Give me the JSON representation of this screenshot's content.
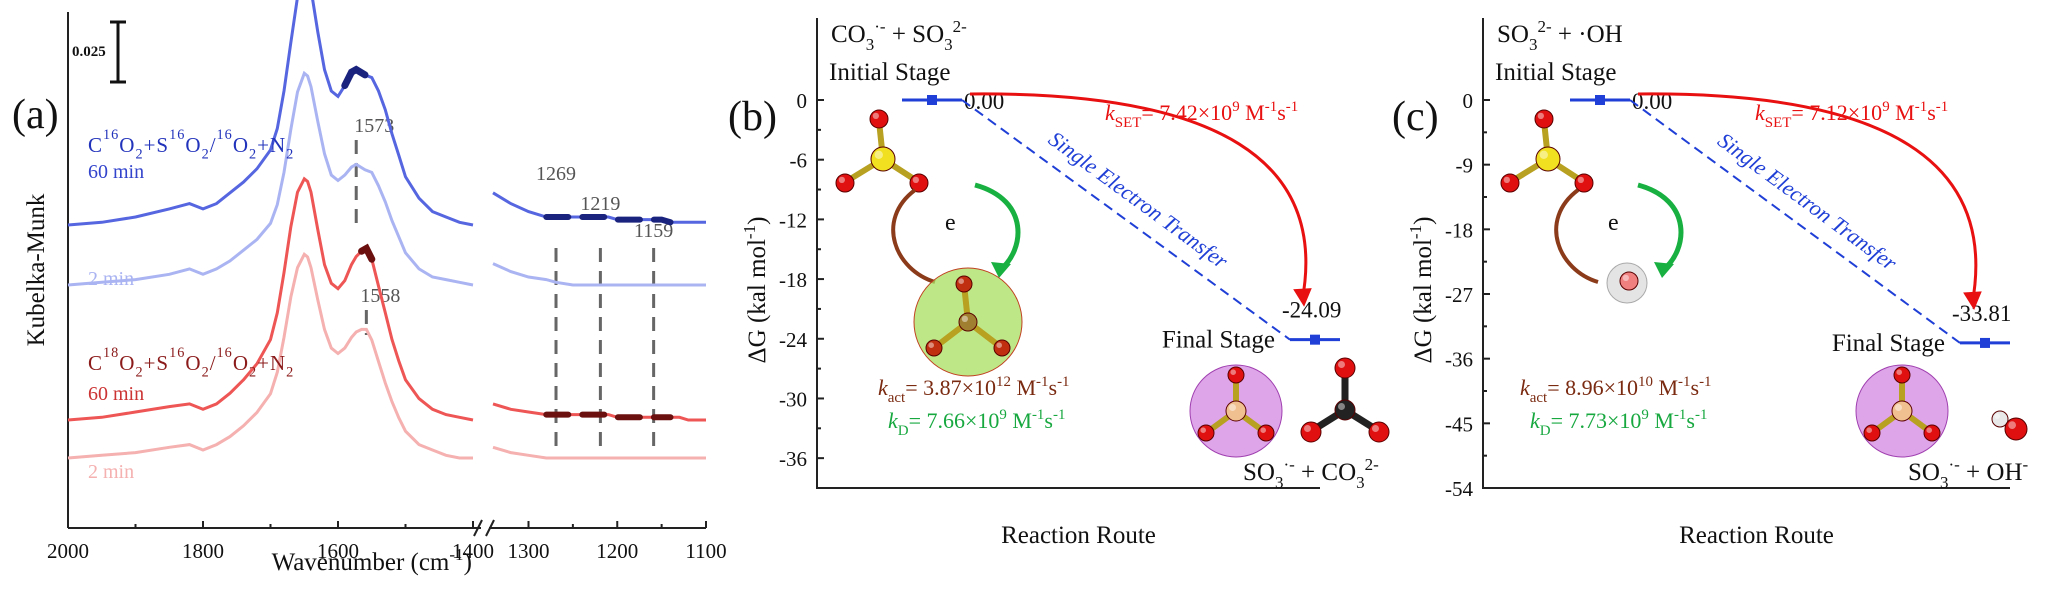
{
  "chart_data": [
    {
      "panel": "(a)",
      "type": "line",
      "xlabel": "Wavenumber (cm⁻¹)",
      "ylabel": "Kubelka-Munk",
      "scale_bar_label": "0.025",
      "xlim": [
        2000,
        1100
      ],
      "axis_break": [
        1400,
        1340
      ],
      "x_ticks": [
        2000,
        1800,
        1600,
        1400,
        1300,
        1200,
        1100
      ],
      "groups": [
        {
          "label_parts": [
            "C",
            "16",
            "O",
            "2",
            "+S",
            "16",
            "O",
            "2",
            "/",
            "16",
            "O",
            "2",
            "+N",
            "2"
          ],
          "color": "#2233bb",
          "peak_label": "1573",
          "peak_x": 1573
        },
        {
          "label_parts": [
            "C",
            "18",
            "O",
            "2",
            "+S",
            "16",
            "O",
            "2",
            "/",
            "16",
            "O",
            "2",
            "+N",
            "2"
          ],
          "color": "#8b1a1a",
          "peak_label": "1558",
          "peak_x": 1558
        }
      ],
      "reference_lines": [
        {
          "x": 1269,
          "label": "1269"
        },
        {
          "x": 1219,
          "label": "1219"
        },
        {
          "x": 1159,
          "label": "1159"
        }
      ],
      "series": [
        {
          "name": "60 min",
          "group": 0,
          "color": "#5566e0",
          "label_color": "#3344cc",
          "x": [
            2000,
            1950,
            1900,
            1850,
            1820,
            1800,
            1780,
            1760,
            1740,
            1720,
            1700,
            1690,
            1680,
            1670,
            1660,
            1650,
            1645,
            1640,
            1630,
            1620,
            1610,
            1600,
            1590,
            1580,
            1573,
            1560,
            1550,
            1540,
            1530,
            1520,
            1510,
            1500,
            1480,
            1460,
            1440,
            1420,
            1400
          ],
          "y": [
            0.0,
            0.001,
            0.003,
            0.006,
            0.008,
            0.006,
            0.008,
            0.012,
            0.016,
            0.021,
            0.028,
            0.036,
            0.05,
            0.068,
            0.085,
            0.094,
            0.093,
            0.088,
            0.072,
            0.058,
            0.05,
            0.048,
            0.052,
            0.057,
            0.058,
            0.056,
            0.055,
            0.05,
            0.043,
            0.034,
            0.026,
            0.018,
            0.01,
            0.005,
            0.003,
            0.001,
            0.0
          ],
          "x2": [
            1340,
            1320,
            1300,
            1280,
            1269,
            1250,
            1240,
            1230,
            1219,
            1210,
            1200,
            1180,
            1170,
            1159,
            1150,
            1140,
            1130,
            1120,
            1110,
            1100
          ],
          "y2": [
            0.012,
            0.008,
            0.005,
            0.003,
            0.003,
            0.003,
            0.003,
            0.003,
            0.003,
            0.003,
            0.002,
            0.002,
            0.002,
            0.002,
            0.002,
            0.001,
            0.001,
            0.001,
            0.001,
            0.001
          ]
        },
        {
          "name": "2 min",
          "group": 0,
          "color": "#aab4f2",
          "label_color": "#aab4f2",
          "x": [
            2000,
            1950,
            1900,
            1850,
            1820,
            1800,
            1780,
            1760,
            1740,
            1720,
            1700,
            1690,
            1680,
            1670,
            1660,
            1650,
            1645,
            1640,
            1630,
            1620,
            1610,
            1600,
            1590,
            1580,
            1573,
            1560,
            1550,
            1540,
            1530,
            1520,
            1510,
            1500,
            1480,
            1460,
            1440,
            1420,
            1400
          ],
          "y": [
            0.0,
            0.001,
            0.002,
            0.004,
            0.006,
            0.004,
            0.006,
            0.009,
            0.013,
            0.017,
            0.023,
            0.03,
            0.042,
            0.058,
            0.072,
            0.079,
            0.078,
            0.074,
            0.061,
            0.049,
            0.041,
            0.039,
            0.041,
            0.044,
            0.045,
            0.043,
            0.042,
            0.037,
            0.031,
            0.024,
            0.018,
            0.012,
            0.006,
            0.003,
            0.002,
            0.001,
            0.0
          ],
          "x2": [
            1340,
            1320,
            1300,
            1280,
            1269,
            1250,
            1240,
            1230,
            1219,
            1210,
            1200,
            1180,
            1170,
            1159,
            1150,
            1140,
            1130,
            1120,
            1110,
            1100
          ],
          "y2": [
            0.008,
            0.005,
            0.003,
            0.002,
            0.001,
            0.0,
            0.0,
            0.0,
            0.0,
            0.0,
            0.0,
            0.0,
            0.0,
            0.0,
            0.0,
            0.0,
            0.0,
            0.0,
            0.0,
            0.0
          ]
        },
        {
          "name": "60 min",
          "group": 1,
          "color": "#ee5555",
          "label_color": "#cc3333",
          "x": [
            2000,
            1950,
            1900,
            1850,
            1820,
            1800,
            1780,
            1760,
            1740,
            1720,
            1700,
            1690,
            1680,
            1670,
            1660,
            1650,
            1645,
            1640,
            1630,
            1620,
            1610,
            1600,
            1590,
            1580,
            1573,
            1565,
            1558,
            1550,
            1540,
            1530,
            1520,
            1510,
            1500,
            1480,
            1460,
            1440,
            1420,
            1400
          ],
          "y": [
            0.0,
            0.001,
            0.003,
            0.005,
            0.006,
            0.004,
            0.006,
            0.01,
            0.015,
            0.021,
            0.03,
            0.04,
            0.055,
            0.072,
            0.085,
            0.09,
            0.089,
            0.085,
            0.071,
            0.058,
            0.051,
            0.049,
            0.052,
            0.058,
            0.061,
            0.063,
            0.064,
            0.06,
            0.05,
            0.04,
            0.03,
            0.022,
            0.015,
            0.008,
            0.004,
            0.002,
            0.001,
            0.0
          ],
          "x2": [
            1340,
            1320,
            1300,
            1280,
            1269,
            1250,
            1240,
            1230,
            1219,
            1210,
            1200,
            1180,
            1170,
            1159,
            1150,
            1140,
            1130,
            1120,
            1110,
            1100
          ],
          "y2": [
            0.006,
            0.004,
            0.003,
            0.002,
            0.002,
            0.002,
            0.002,
            0.002,
            0.002,
            0.002,
            0.001,
            0.001,
            0.001,
            0.001,
            0.001,
            0.001,
            0.001,
            0.0,
            0.0,
            0.0
          ]
        },
        {
          "name": "2 min",
          "group": 1,
          "color": "#f5b0b0",
          "label_color": "#f5b0b0",
          "x": [
            2000,
            1950,
            1900,
            1850,
            1820,
            1800,
            1780,
            1760,
            1740,
            1720,
            1700,
            1690,
            1680,
            1670,
            1660,
            1650,
            1645,
            1640,
            1630,
            1620,
            1610,
            1600,
            1590,
            1580,
            1573,
            1565,
            1558,
            1550,
            1540,
            1530,
            1520,
            1510,
            1500,
            1480,
            1460,
            1440,
            1420,
            1400
          ],
          "y": [
            0.0,
            0.001,
            0.002,
            0.004,
            0.005,
            0.003,
            0.005,
            0.008,
            0.012,
            0.017,
            0.024,
            0.032,
            0.045,
            0.06,
            0.071,
            0.076,
            0.075,
            0.071,
            0.059,
            0.048,
            0.041,
            0.039,
            0.041,
            0.045,
            0.047,
            0.048,
            0.048,
            0.044,
            0.036,
            0.028,
            0.021,
            0.015,
            0.01,
            0.005,
            0.003,
            0.001,
            0.0,
            0.0
          ],
          "x2": [
            1340,
            1320,
            1300,
            1280,
            1269,
            1250,
            1240,
            1230,
            1219,
            1210,
            1200,
            1180,
            1170,
            1159,
            1150,
            1140,
            1130,
            1120,
            1110,
            1100
          ],
          "y2": [
            0.004,
            0.002,
            0.001,
            0.0,
            0.0,
            0.0,
            0.0,
            0.0,
            0.0,
            0.0,
            0.0,
            0.0,
            0.0,
            0.0,
            0.0,
            0.0,
            0.0,
            0.0,
            0.0,
            0.0
          ]
        }
      ]
    },
    {
      "panel": "(b)",
      "type": "line",
      "ylabel": "ΔG (kal mol⁻¹)",
      "xlabel": "Reaction Route",
      "ylim": [
        -39,
        0
      ],
      "y_ticks": [
        0,
        -6,
        -12,
        -18,
        -24,
        -30,
        -36
      ],
      "y_tick_labels": [
        "0",
        "-6",
        "-12",
        "-18",
        "-24",
        "-30",
        "-36"
      ],
      "reactants_parts": [
        "CO",
        "3",
        "·-",
        " + SO",
        "3",
        "2-"
      ],
      "initial_label": "Initial Stage",
      "final_label": "Final Stage",
      "products_parts": [
        "SO",
        "3",
        "·-",
        " + CO",
        "3",
        "2-"
      ],
      "energies": [
        0.0,
        -24.09
      ],
      "energy_labels": [
        "0.00",
        "-24.09"
      ],
      "transfer_label": "Single Electron Transfer",
      "electron_label": "e",
      "rate_set": {
        "k": "k",
        "sub": "SET",
        "value": "= 7.42×10",
        "exp": "9",
        "unit": " M",
        "u1": "-1",
        "unit2": "s",
        "u2": "-1"
      },
      "rate_act": {
        "k": "k",
        "sub": "act",
        "value": "= 3.87×10",
        "exp": "12",
        "unit": " M",
        "u1": "-1",
        "unit2": "s",
        "u2": "-1"
      },
      "rate_d": {
        "k": "k",
        "sub": "D",
        "value": "= 7.66×10",
        "exp": "9",
        "unit": " M",
        "u1": "-1",
        "unit2": "s",
        "u2": "-1"
      },
      "colors": {
        "level": "#1f3fd6",
        "set": "#e81010",
        "act": "#7a2a10",
        "diff": "#18a840",
        "transfer": "#1f3fd6"
      }
    },
    {
      "panel": "(c)",
      "type": "line",
      "ylabel": "ΔG (kal mol⁻¹)",
      "xlabel": "Reaction Route",
      "ylim": [
        -54,
        0
      ],
      "y_ticks": [
        0,
        -9,
        -18,
        -27,
        -36,
        -45,
        -54
      ],
      "y_tick_labels": [
        "0",
        "-9",
        "-18",
        "-27",
        "-36",
        "-45",
        "-54"
      ],
      "reactants_parts": [
        "SO",
        "3",
        "2-",
        " + ·OH",
        "",
        ""
      ],
      "initial_label": "Initial Stage",
      "final_label": "Final Stage",
      "products_parts": [
        "SO",
        "3",
        "·-",
        " + OH",
        "",
        "-"
      ],
      "energies": [
        0.0,
        -33.81
      ],
      "energy_labels": [
        "0.00",
        "-33.81"
      ],
      "transfer_label": "Single Electron Transfer",
      "electron_label": "e",
      "rate_set": {
        "k": "k",
        "sub": "SET",
        "value": "= 7.12×10",
        "exp": "9",
        "unit": " M",
        "u1": "-1",
        "unit2": "s",
        "u2": "-1"
      },
      "rate_act": {
        "k": "k",
        "sub": "act",
        "value": "= 8.96×10",
        "exp": "10",
        "unit": " M",
        "u1": "-1",
        "unit2": "s",
        "u2": "-1"
      },
      "rate_d": {
        "k": "k",
        "sub": "D",
        "value": "= 7.73×10",
        "exp": "9",
        "unit": " M",
        "u1": "-1",
        "unit2": "s",
        "u2": "-1"
      },
      "colors": {
        "level": "#1f3fd6",
        "set": "#e81010",
        "act": "#7a2a10",
        "diff": "#18a840",
        "transfer": "#1f3fd6"
      }
    }
  ]
}
